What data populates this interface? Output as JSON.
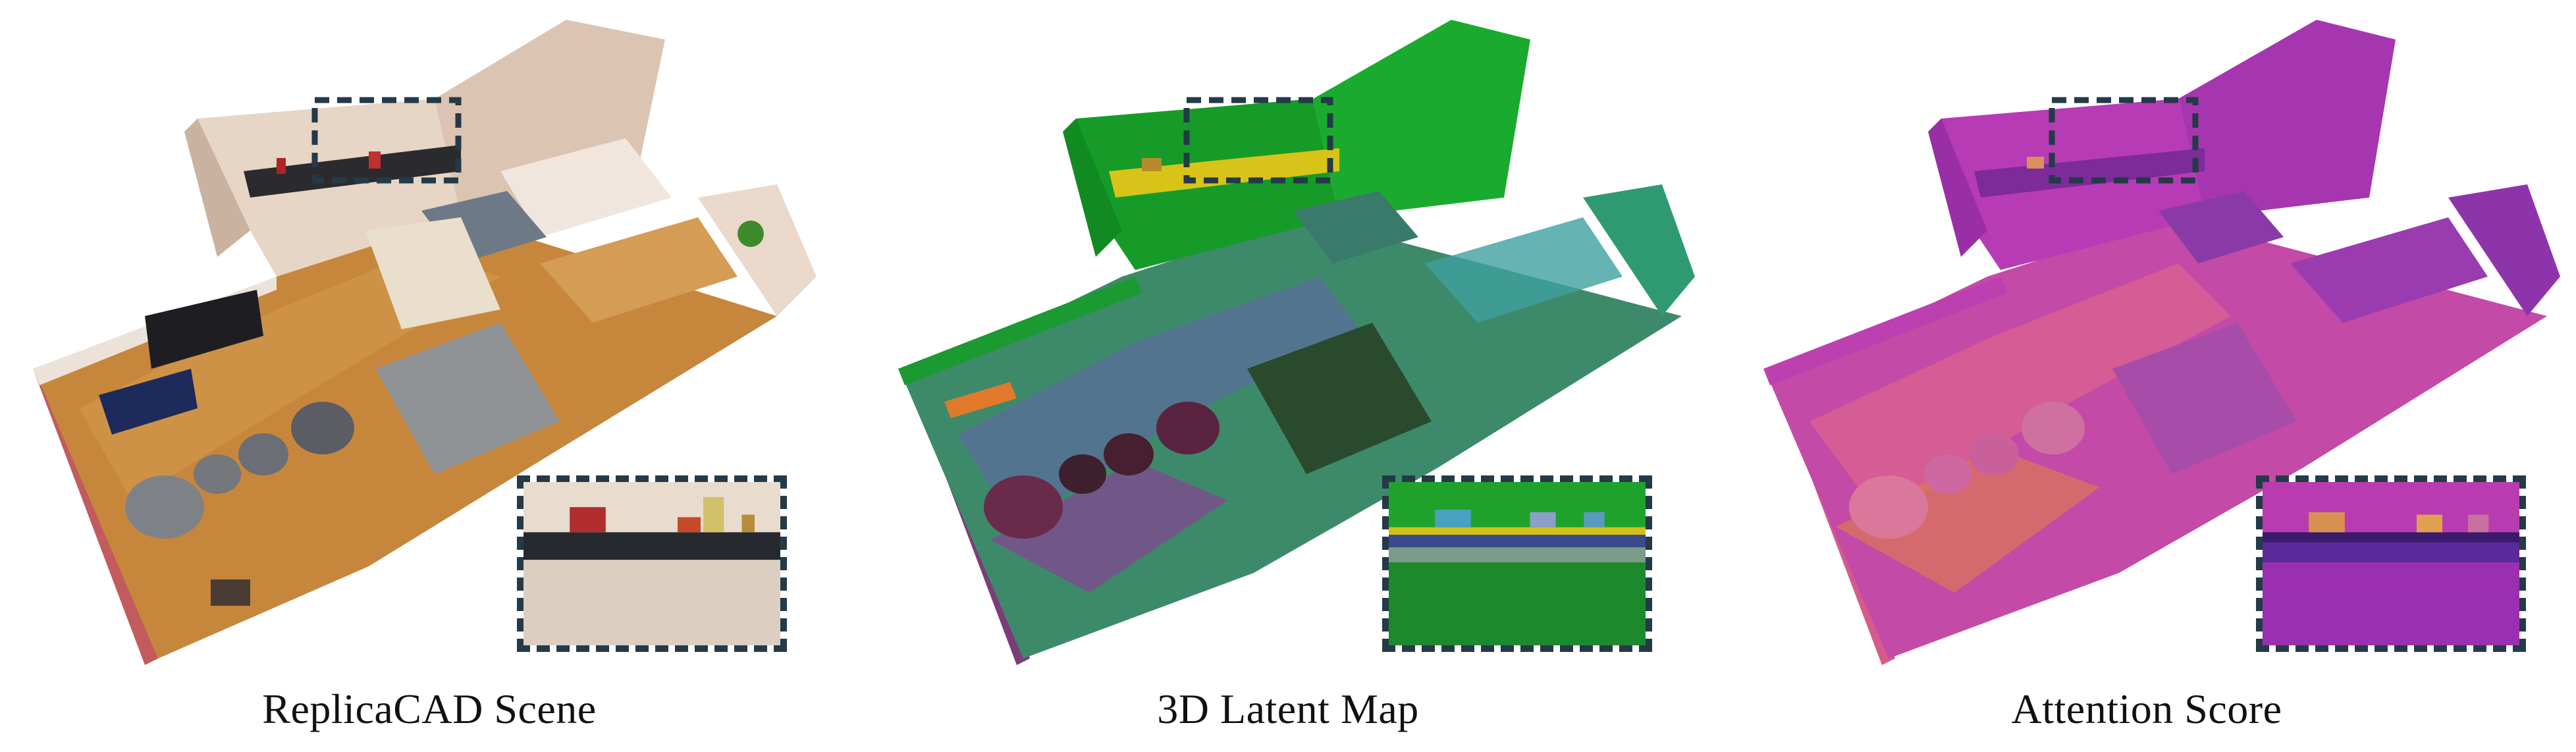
{
  "panels": [
    {
      "caption": "ReplicaCAD Scene"
    },
    {
      "caption": "3D Latent Map"
    },
    {
      "caption": "Attention Score"
    }
  ],
  "colors": {
    "box_outline": "#243a48",
    "scene_wall": "#e6d4c6",
    "scene_floor": "#c98a3c",
    "latent_green": "#18a52c",
    "latent_purple": "#8a4f9e",
    "attention_magenta": "#c43ab8",
    "attention_orange": "#e57a4a"
  }
}
